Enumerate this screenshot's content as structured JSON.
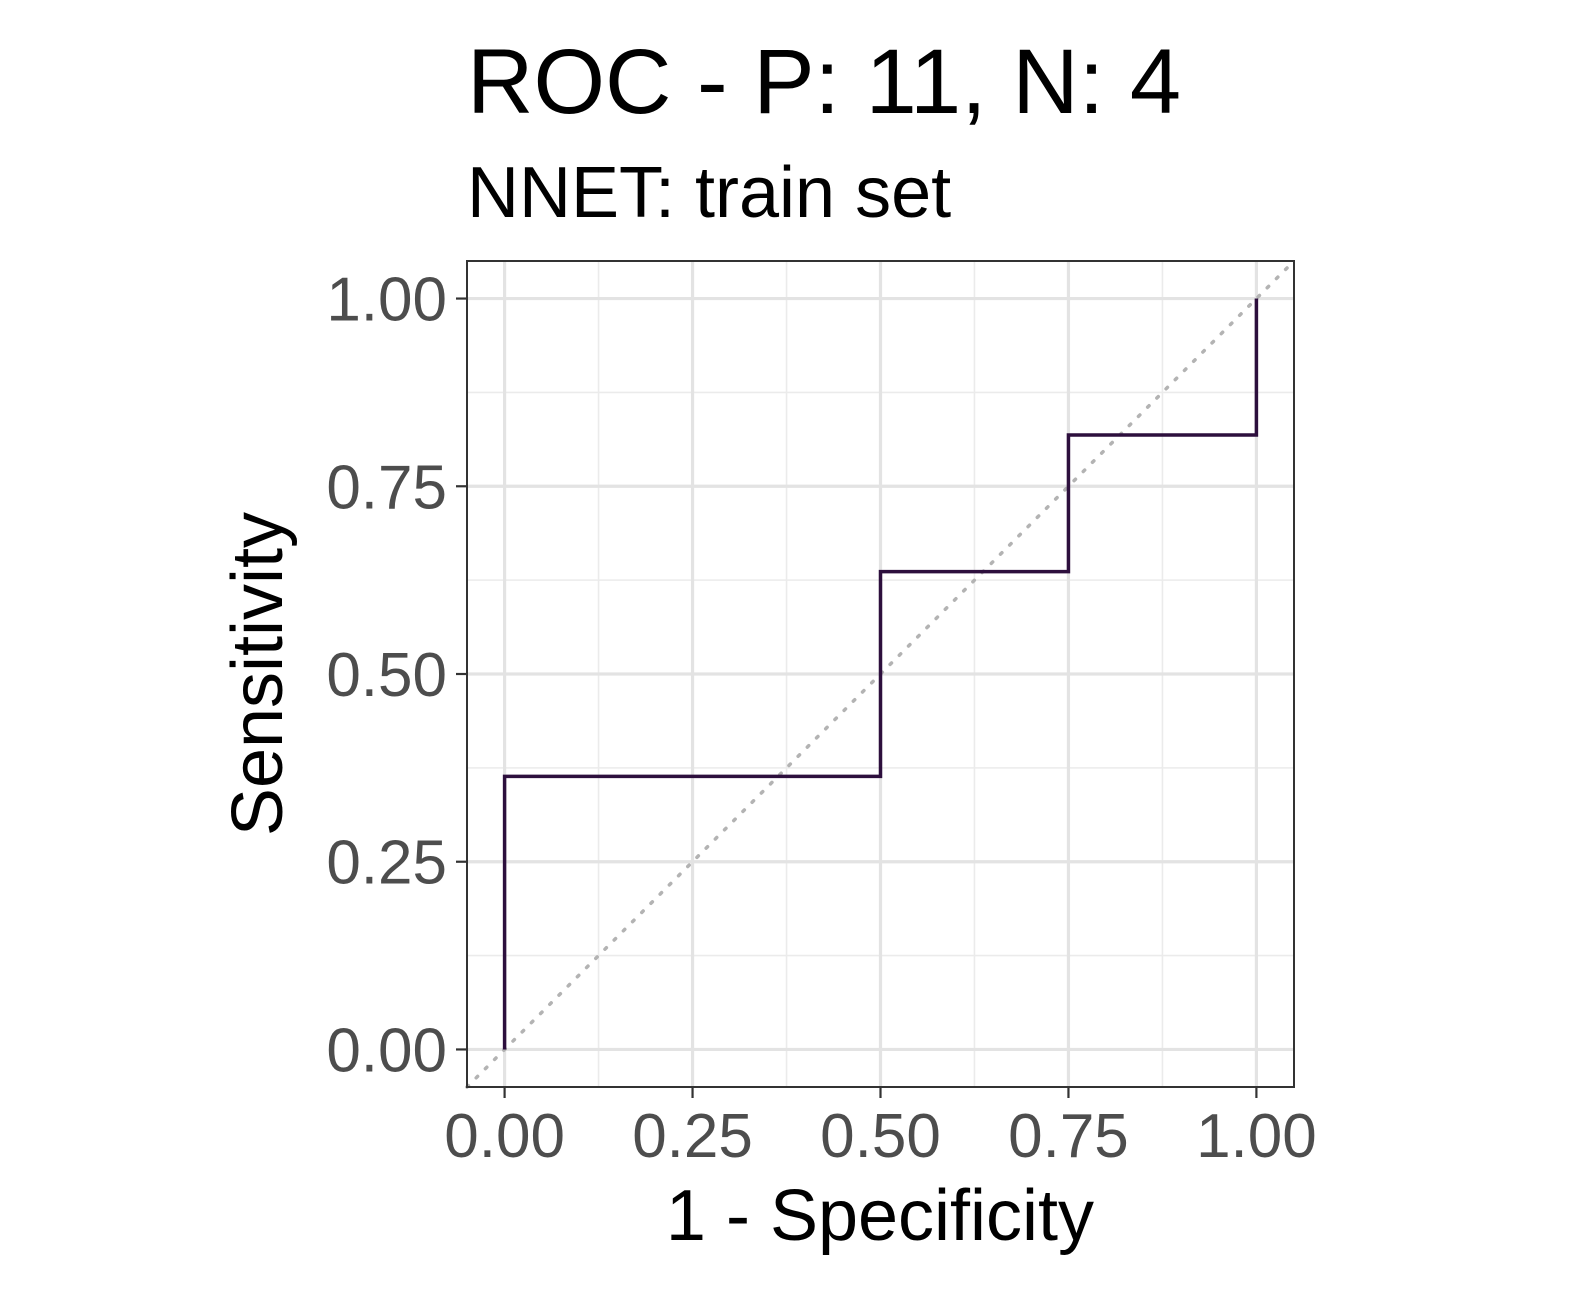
{
  "chart_data": {
    "type": "line",
    "title": "ROC - P: 11, N: 4",
    "subtitle": "NNET: train set",
    "xlabel": "1 - Specificity",
    "ylabel": "Sensitivity",
    "xlim": [
      -0.05,
      1.05
    ],
    "ylim": [
      -0.05,
      1.05
    ],
    "x_ticks": [
      "0.00",
      "0.25",
      "0.50",
      "0.75",
      "1.00"
    ],
    "y_ticks": [
      "0.00",
      "0.25",
      "0.50",
      "0.75",
      "1.00"
    ],
    "x_tick_values": [
      0,
      0.25,
      0.5,
      0.75,
      1.0
    ],
    "y_tick_values": [
      0,
      0.25,
      0.5,
      0.75,
      1.0
    ],
    "grid": true,
    "legend": "none",
    "series": [
      {
        "color": "#2d0f3d",
        "x": [
          0,
          0,
          0.5,
          0.5,
          0.75,
          0.75,
          1.0,
          1.0
        ],
        "y": [
          0,
          0.3636,
          0.3636,
          0.6364,
          0.6364,
          0.8182,
          0.8182,
          1.0
        ]
      }
    ],
    "reference_line": {
      "x": [
        -0.05,
        1.05
      ],
      "y": [
        -0.05,
        1.05
      ],
      "color": "#b3b3b3",
      "style": "dotted"
    }
  }
}
